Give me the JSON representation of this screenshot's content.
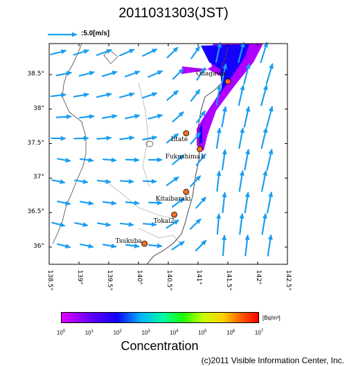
{
  "title": "2011031303(JST)",
  "reference_arrow": {
    "label": ":5.0[m/s]",
    "speed_ms": 5.0
  },
  "map": {
    "lon_range": [
      138.5,
      142.5
    ],
    "lat_range": [
      35.75,
      38.95
    ],
    "lat_ticks": [
      "38.5°",
      "38°",
      "37.5°",
      "37°",
      "36.5°",
      "36°"
    ],
    "lon_ticks": [
      "138.5°",
      "139°",
      "139.5°",
      "140°",
      "140.5°",
      "141°",
      "141.5°",
      "142°",
      "142.5°"
    ],
    "sites": [
      {
        "name": "Onagawa",
        "lon": 141.5,
        "lat": 38.4
      },
      {
        "name": "Iitate",
        "lon": 140.8,
        "lat": 37.65
      },
      {
        "name": "Fukushima1",
        "lon": 141.03,
        "lat": 37.42
      },
      {
        "name": "Kitaibaraki",
        "lon": 140.8,
        "lat": 36.8
      },
      {
        "name": "Tokai2",
        "lon": 140.6,
        "lat": 36.47
      },
      {
        "name": "Tsukuba",
        "lon": 140.1,
        "lat": 36.05
      }
    ],
    "colors": {
      "arrow": "#1a9ef0",
      "plume_outer": "#b000ff",
      "plume_core": "#1400ff",
      "site_marker": "#f07020",
      "coast": "#444444"
    }
  },
  "colorbar": {
    "unit": "[Bq/m³]",
    "ticks": [
      {
        "base": "10",
        "exp": "0"
      },
      {
        "base": "10",
        "exp": "1"
      },
      {
        "base": "10",
        "exp": "2"
      },
      {
        "base": "10",
        "exp": "3"
      },
      {
        "base": "10",
        "exp": "4"
      },
      {
        "base": "10",
        "exp": "5"
      },
      {
        "base": "10",
        "exp": "6"
      },
      {
        "base": "10",
        "exp": "7"
      }
    ],
    "label": "Concentration"
  },
  "copyright": "(c)2011 Visible Information Center, Inc."
}
